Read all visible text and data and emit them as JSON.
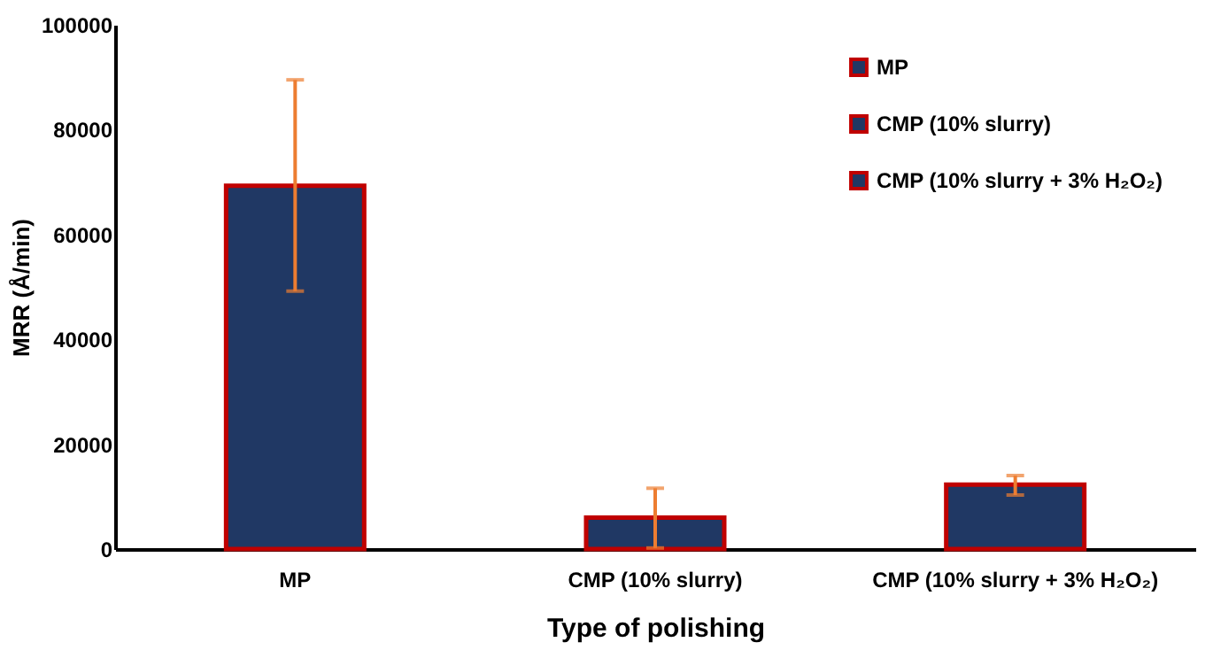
{
  "chart_data": {
    "type": "bar",
    "categories": [
      "MP",
      "CMP (10% slurry)",
      "CMP (10% slurry + 3% H₂O₂)"
    ],
    "series": [
      {
        "name": "MP",
        "color": "#203864",
        "values": [
          69300,
          null,
          null
        ],
        "errors": [
          [
            49200,
            89500
          ],
          null,
          null
        ]
      },
      {
        "name": "CMP (10% slurry)",
        "color": "#203864",
        "values": [
          null,
          6000,
          null
        ],
        "errors": [
          null,
          [
            200,
            11600
          ],
          null
        ]
      },
      {
        "name": "CMP (10% slurry + 3% H₂O₂)",
        "color": "#203864",
        "values": [
          null,
          null,
          12300
        ],
        "errors": [
          null,
          null,
          [
            10300,
            14000
          ]
        ]
      }
    ],
    "xlabel": "Type of polishing",
    "ylabel": "MRR (Å/min)",
    "ylim": [
      0,
      100000
    ],
    "yticks": [
      0,
      20000,
      40000,
      60000,
      80000,
      100000
    ],
    "grid": false,
    "legend": "top right"
  }
}
